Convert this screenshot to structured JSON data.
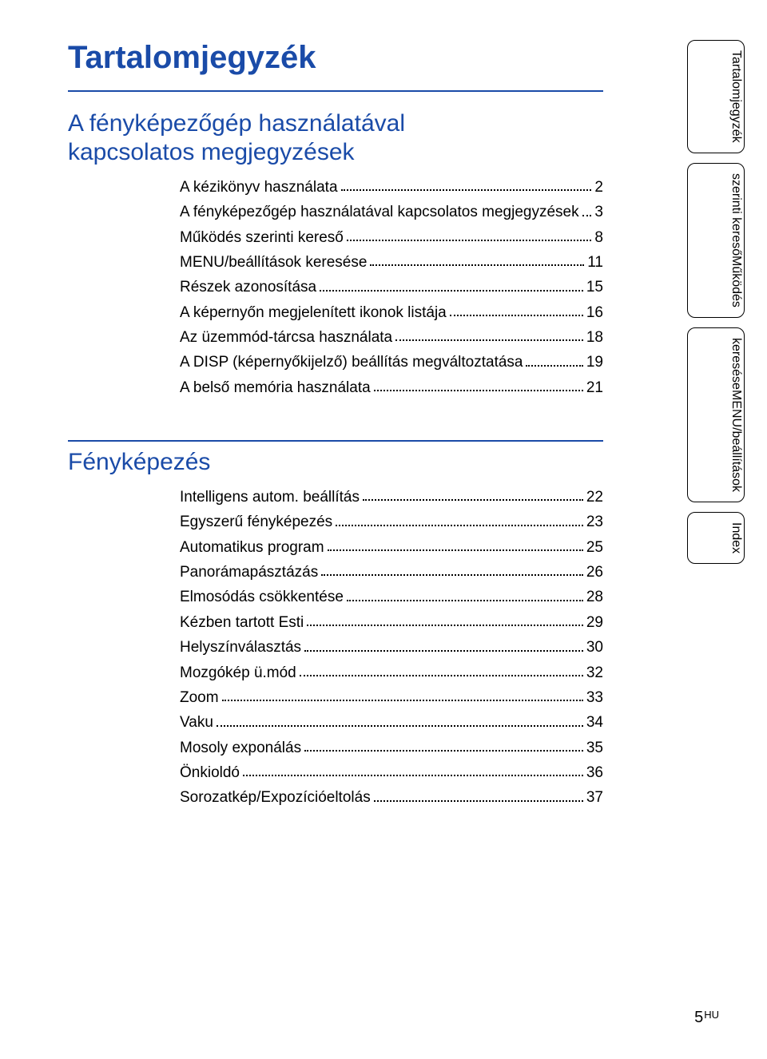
{
  "page_title": "Tartalomjegyzék",
  "section1": {
    "heading_l1": "A fényképezőgép használatával",
    "heading_l2": "kapcsolatos megjegyzések",
    "items": [
      {
        "label": "A kézikönyv használata",
        "page": "2"
      },
      {
        "label": "A fényképezőgép használatával kapcsolatos megjegyzések",
        "page": "3"
      },
      {
        "label": "Működés szerinti kereső",
        "page": "8"
      },
      {
        "label": "MENU/beállítások keresése",
        "page": "11"
      },
      {
        "label": "Részek azonosítása",
        "page": "15"
      },
      {
        "label": "A képernyőn megjelenített ikonok listája",
        "page": "16"
      },
      {
        "label": "Az üzemmód-tárcsa használata",
        "page": "18"
      },
      {
        "label": "A DISP (képernyőkijelző) beállítás megváltoztatása",
        "page": "19"
      },
      {
        "label": "A belső memória használata",
        "page": "21"
      }
    ]
  },
  "section2": {
    "heading": "Fényképezés",
    "items": [
      {
        "label": "Intelligens autom. beállítás",
        "page": "22"
      },
      {
        "label": "Egyszerű fényképezés",
        "page": "23"
      },
      {
        "label": "Automatikus program",
        "page": "25"
      },
      {
        "label": "Panorámapásztázás",
        "page": "26"
      },
      {
        "label": "Elmosódás csökkentése",
        "page": "28"
      },
      {
        "label": "Kézben tartott Esti",
        "page": "29"
      },
      {
        "label": "Helyszínválasztás",
        "page": "30"
      },
      {
        "label": "Mozgókép ü.mód",
        "page": "32"
      },
      {
        "label": "Zoom",
        "page": "33"
      },
      {
        "label": "Vaku",
        "page": "34"
      },
      {
        "label": "Mosoly exponálás",
        "page": "35"
      },
      {
        "label": "Önkioldó",
        "page": "36"
      },
      {
        "label": "Sorozatkép/Expozícióeltolás",
        "page": "37"
      }
    ]
  },
  "tabs": {
    "t1": "Tartalomjegyzék",
    "t2a": "Működés",
    "t2b": "szerinti kereső",
    "t3a": "MENU/beállítások",
    "t3b": "keresése",
    "t4": "Index"
  },
  "footer_page": "5",
  "footer_lang": "HU",
  "colors": {
    "heading": "#1a4ba8",
    "text": "#000000",
    "background": "#ffffff"
  }
}
